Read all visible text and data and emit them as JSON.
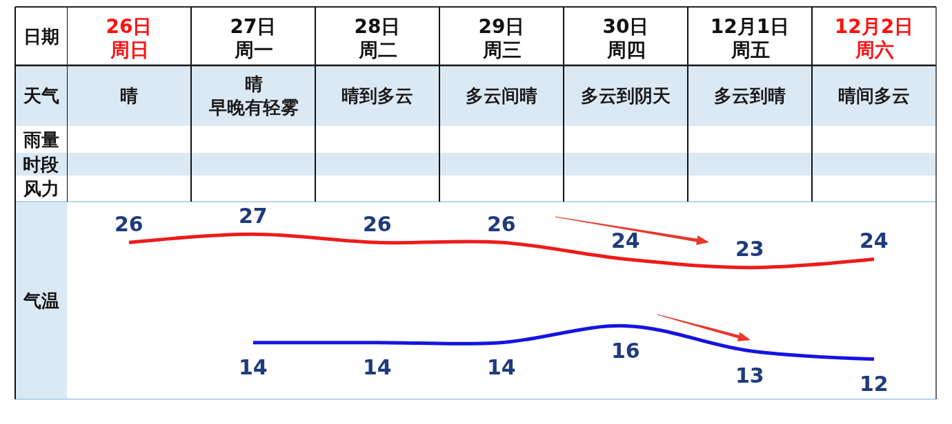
{
  "chart_data": {
    "type": "line",
    "xlabel": "日期",
    "ylabel": "气温",
    "categories": [
      "26日",
      "27日",
      "28日",
      "29日",
      "30日",
      "12月1日",
      "12月2日"
    ],
    "series": [
      {
        "color": "#ee1b1b",
        "values": [
          26,
          27,
          26,
          26,
          24,
          23,
          24
        ]
      },
      {
        "color": "#1414e0",
        "values": [
          null,
          14,
          14,
          14,
          16,
          13,
          12
        ]
      }
    ],
    "data_labels": true,
    "tick_labels": "x",
    "annotations": [
      "周日",
      "周一",
      "周二",
      "周三",
      "周四",
      "周五",
      "周六",
      "天气",
      "晴",
      "晴早晚有轻雾",
      "晴到多云",
      "多云间晴",
      "多云到阴天",
      "多云到晴",
      "晴间多云",
      "雨量",
      "时段",
      "风力"
    ]
  }
}
